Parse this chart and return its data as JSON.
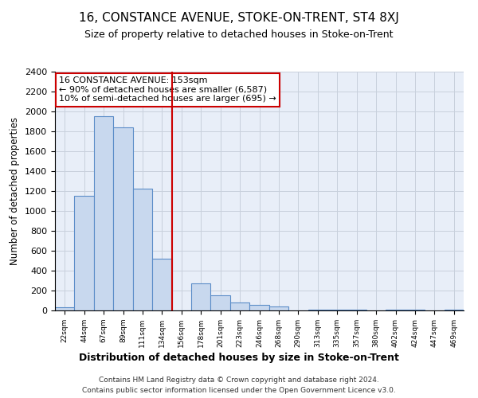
{
  "title": "16, CONSTANCE AVENUE, STOKE-ON-TRENT, ST4 8XJ",
  "subtitle": "Size of property relative to detached houses in Stoke-on-Trent",
  "xlabel": "Distribution of detached houses by size in Stoke-on-Trent",
  "ylabel": "Number of detached properties",
  "bin_labels": [
    "22sqm",
    "44sqm",
    "67sqm",
    "89sqm",
    "111sqm",
    "134sqm",
    "156sqm",
    "178sqm",
    "201sqm",
    "223sqm",
    "246sqm",
    "268sqm",
    "290sqm",
    "313sqm",
    "335sqm",
    "357sqm",
    "380sqm",
    "402sqm",
    "424sqm",
    "447sqm",
    "469sqm"
  ],
  "bar_values": [
    30,
    1155,
    1950,
    1840,
    1225,
    520,
    0,
    270,
    155,
    80,
    55,
    40,
    0,
    10,
    5,
    5,
    0,
    5,
    5,
    0,
    5
  ],
  "bar_color": "#c8d8ee",
  "bar_edge_color": "#5b8dc8",
  "vline_color": "#cc0000",
  "vline_index": 6,
  "annotation_text": "16 CONSTANCE AVENUE: 153sqm\n← 90% of detached houses are smaller (6,587)\n10% of semi-detached houses are larger (695) →",
  "annotation_box_color": "#cc0000",
  "ylim": [
    0,
    2400
  ],
  "yticks": [
    0,
    200,
    400,
    600,
    800,
    1000,
    1200,
    1400,
    1600,
    1800,
    2000,
    2200,
    2400
  ],
  "footer_line1": "Contains HM Land Registry data © Crown copyright and database right 2024.",
  "footer_line2": "Contains public sector information licensed under the Open Government Licence v3.0.",
  "grid_color": "#c8d0dc",
  "bg_color": "#e8eef8"
}
